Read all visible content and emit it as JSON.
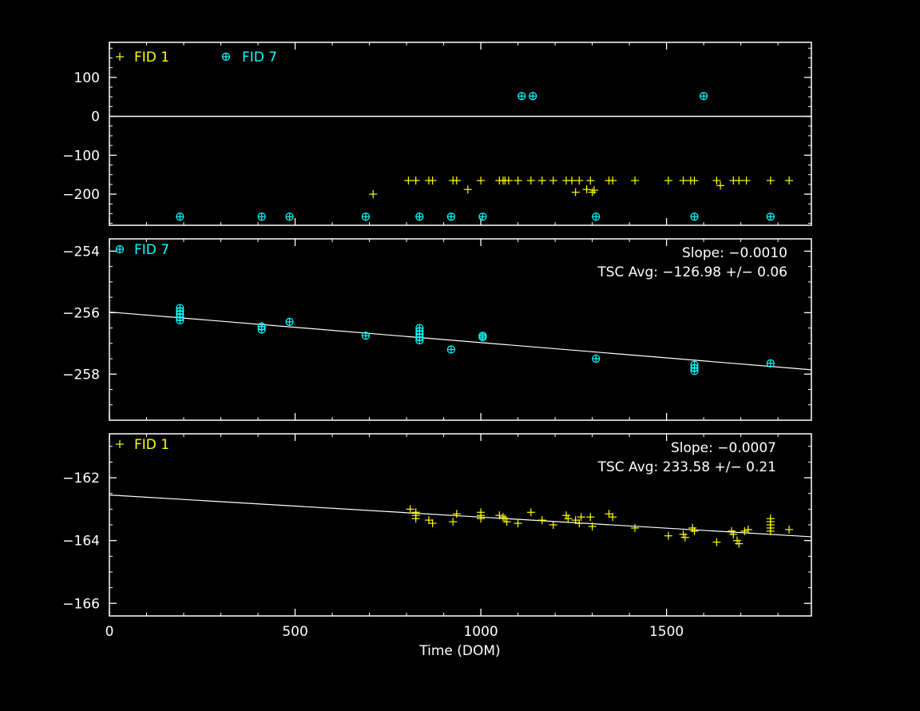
{
  "colors": {
    "background": "#000000",
    "frame": "#ffffff",
    "fid1": "#ffff00",
    "fid7": "#00ffff",
    "fit_line": "#ffffff"
  },
  "xaxis": {
    "label": "Time (DOM)",
    "range": [
      0,
      1890
    ],
    "tick_labels": [
      "0",
      "500",
      "1000",
      "1500"
    ]
  },
  "chart_data": [
    {
      "type": "scatter",
      "xlim": [
        0,
        1890
      ],
      "ylim": [
        -280,
        190
      ],
      "ytick_labels": [
        "100",
        "0",
        "−100",
        "−200"
      ],
      "zero_line": true,
      "legend": [
        "FID 1",
        "FID 7"
      ],
      "series": [
        {
          "name": "FID 1",
          "marker": "plus",
          "color": "#ffff00",
          "points": [
            [
              710,
              -200
            ],
            [
              805,
              -165
            ],
            [
              825,
              -165
            ],
            [
              860,
              -165
            ],
            [
              870,
              -165
            ],
            [
              925,
              -165
            ],
            [
              935,
              -165
            ],
            [
              965,
              -188
            ],
            [
              1000,
              -165
            ],
            [
              1050,
              -165
            ],
            [
              1060,
              -165
            ],
            [
              1065,
              -165
            ],
            [
              1075,
              -165
            ],
            [
              1100,
              -165
            ],
            [
              1135,
              -165
            ],
            [
              1165,
              -165
            ],
            [
              1195,
              -165
            ],
            [
              1230,
              -165
            ],
            [
              1245,
              -165
            ],
            [
              1255,
              -195
            ],
            [
              1265,
              -165
            ],
            [
              1285,
              -188
            ],
            [
              1295,
              -165
            ],
            [
              1300,
              -195
            ],
            [
              1305,
              -190
            ],
            [
              1345,
              -165
            ],
            [
              1355,
              -165
            ],
            [
              1415,
              -165
            ],
            [
              1505,
              -165
            ],
            [
              1545,
              -165
            ],
            [
              1565,
              -165
            ],
            [
              1575,
              -165
            ],
            [
              1635,
              -165
            ],
            [
              1645,
              -178
            ],
            [
              1680,
              -165
            ],
            [
              1695,
              -165
            ],
            [
              1715,
              -165
            ],
            [
              1780,
              -165
            ],
            [
              1830,
              -165
            ]
          ]
        },
        {
          "name": "FID 7",
          "marker": "circle-plus",
          "color": "#00ffff",
          "points": [
            [
              190,
              -258
            ],
            [
              410,
              -258
            ],
            [
              485,
              -258
            ],
            [
              690,
              -258
            ],
            [
              835,
              -258
            ],
            [
              920,
              -258
            ],
            [
              1005,
              -258
            ],
            [
              1110,
              52
            ],
            [
              1140,
              52
            ],
            [
              1310,
              -258
            ],
            [
              1575,
              -258
            ],
            [
              1600,
              52
            ],
            [
              1780,
              -258
            ]
          ]
        }
      ]
    },
    {
      "type": "scatter",
      "xlim": [
        0,
        1890
      ],
      "ylim": [
        -259.5,
        -253.6
      ],
      "ytick_labels": [
        "−254",
        "−256",
        "−258"
      ],
      "legend": [
        "FID 7"
      ],
      "annotations": [
        "Slope: −0.0010",
        "TSC Avg: −126.98 +/− 0.06"
      ],
      "fit": {
        "x": [
          0,
          1890
        ],
        "y": [
          -255.98,
          -257.86
        ]
      },
      "series": [
        {
          "name": "FID 7",
          "marker": "circle-plus",
          "color": "#00ffff",
          "points": [
            [
              190,
              -255.85
            ],
            [
              190,
              -255.95
            ],
            [
              190,
              -256.05
            ],
            [
              190,
              -256.15
            ],
            [
              190,
              -256.25
            ],
            [
              410,
              -256.45
            ],
            [
              410,
              -256.55
            ],
            [
              485,
              -256.3
            ],
            [
              690,
              -256.75
            ],
            [
              835,
              -256.5
            ],
            [
              835,
              -256.6
            ],
            [
              835,
              -256.7
            ],
            [
              835,
              -256.8
            ],
            [
              835,
              -256.9
            ],
            [
              920,
              -257.2
            ],
            [
              1005,
              -256.75
            ],
            [
              1005,
              -256.8
            ],
            [
              1310,
              -257.5
            ],
            [
              1575,
              -257.7
            ],
            [
              1575,
              -257.8
            ],
            [
              1575,
              -257.9
            ],
            [
              1780,
              -257.65
            ]
          ]
        }
      ]
    },
    {
      "type": "scatter",
      "xlim": [
        0,
        1890
      ],
      "ylim": [
        -166.4,
        -160.6
      ],
      "ytick_labels": [
        "−162",
        "−164",
        "−166"
      ],
      "legend": [
        "FID 1"
      ],
      "annotations": [
        "Slope: −0.0007",
        "TSC Avg: 233.58 +/− 0.21"
      ],
      "fit": {
        "x": [
          0,
          1890
        ],
        "y": [
          -162.55,
          -163.88
        ]
      },
      "series": [
        {
          "name": "FID 1",
          "marker": "plus",
          "color": "#ffff00",
          "points": [
            [
              810,
              -163.0
            ],
            [
              825,
              -163.1
            ],
            [
              825,
              -163.2
            ],
            [
              825,
              -163.3
            ],
            [
              860,
              -163.35
            ],
            [
              870,
              -163.45
            ],
            [
              925,
              -163.4
            ],
            [
              935,
              -163.15
            ],
            [
              1000,
              -163.1
            ],
            [
              1000,
              -163.2
            ],
            [
              1000,
              -163.3
            ],
            [
              1050,
              -163.2
            ],
            [
              1060,
              -163.25
            ],
            [
              1065,
              -163.3
            ],
            [
              1070,
              -163.4
            ],
            [
              1100,
              -163.45
            ],
            [
              1135,
              -163.1
            ],
            [
              1165,
              -163.35
            ],
            [
              1195,
              -163.5
            ],
            [
              1230,
              -163.2
            ],
            [
              1235,
              -163.3
            ],
            [
              1255,
              -163.35
            ],
            [
              1265,
              -163.45
            ],
            [
              1270,
              -163.25
            ],
            [
              1295,
              -163.25
            ],
            [
              1300,
              -163.55
            ],
            [
              1345,
              -163.15
            ],
            [
              1355,
              -163.25
            ],
            [
              1415,
              -163.6
            ],
            [
              1505,
              -163.85
            ],
            [
              1545,
              -163.8
            ],
            [
              1550,
              -163.9
            ],
            [
              1570,
              -163.6
            ],
            [
              1575,
              -163.7
            ],
            [
              1635,
              -164.05
            ],
            [
              1675,
              -163.7
            ],
            [
              1680,
              -163.8
            ],
            [
              1690,
              -164.0
            ],
            [
              1695,
              -164.1
            ],
            [
              1710,
              -163.7
            ],
            [
              1720,
              -163.65
            ],
            [
              1780,
              -163.3
            ],
            [
              1780,
              -163.4
            ],
            [
              1780,
              -163.5
            ],
            [
              1780,
              -163.6
            ],
            [
              1780,
              -163.7
            ],
            [
              1830,
              -163.65
            ]
          ]
        }
      ]
    }
  ]
}
